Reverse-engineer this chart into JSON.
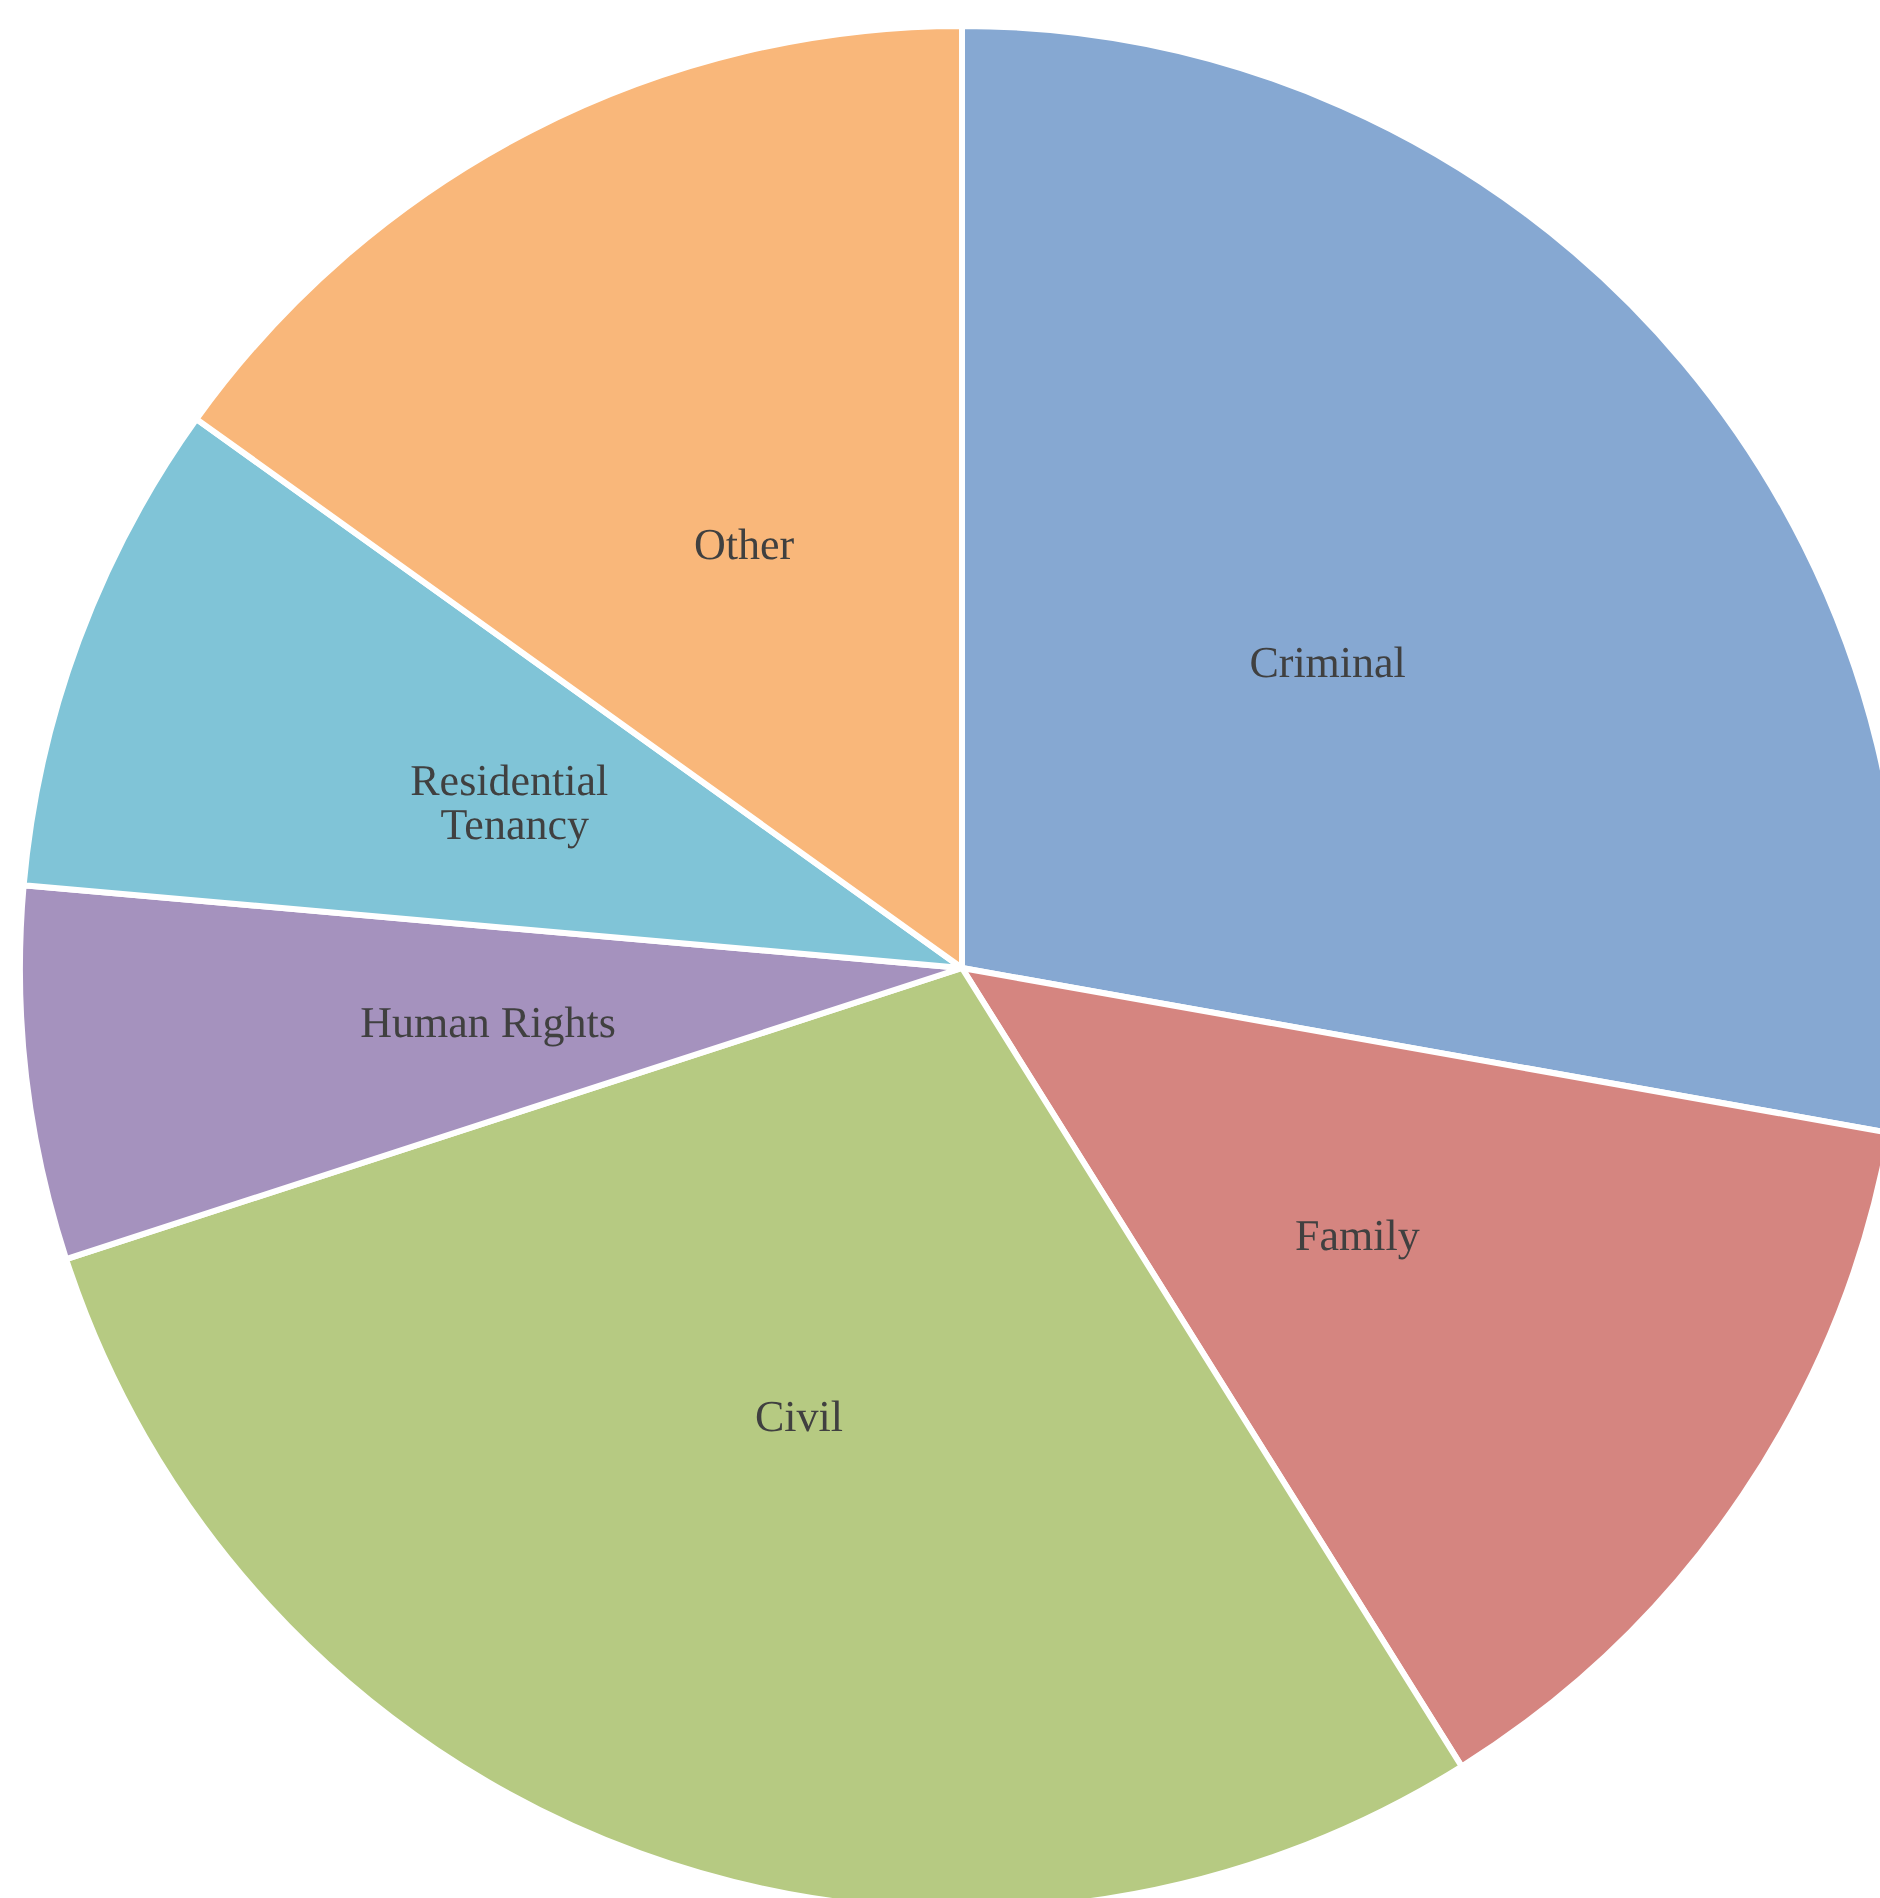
{
  "chart_data": {
    "type": "pie",
    "categories": [
      "Criminal",
      "Family",
      "Civil",
      "Human Rights",
      "Residential Tenancy",
      "Other"
    ],
    "values": [
      27.8,
      13.3,
      28.9,
      6.4,
      8.5,
      15.1
    ],
    "colors": [
      "#86a8d2",
      "#d58580",
      "#b6ca82",
      "#a592be",
      "#80c4d7",
      "#f9b77a"
    ],
    "legend": false
  }
}
